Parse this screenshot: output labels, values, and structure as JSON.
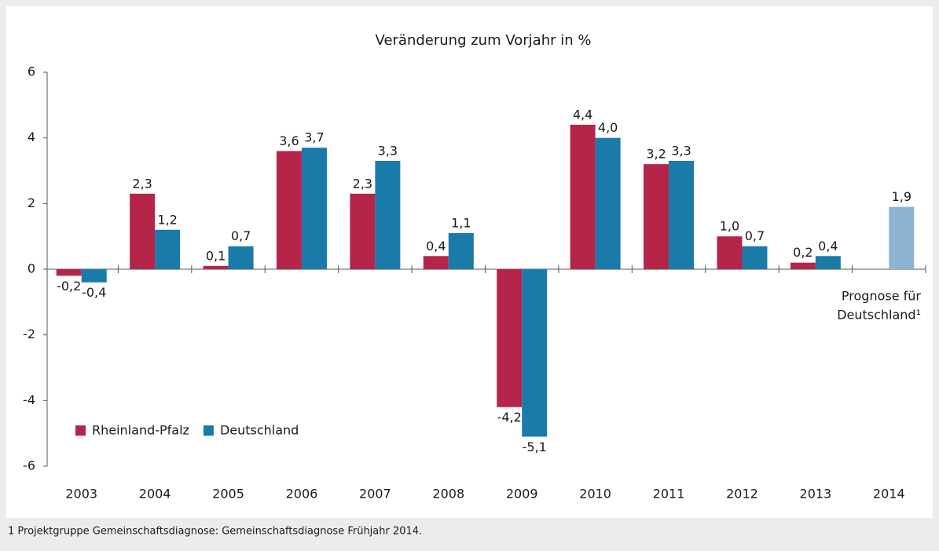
{
  "chart_data": {
    "type": "bar",
    "title": "Veränderung zum Vorjahr in %",
    "categories": [
      "2003",
      "2004",
      "2005",
      "2006",
      "2007",
      "2008",
      "2009",
      "2010",
      "2011",
      "2012",
      "2013",
      "2014"
    ],
    "series": [
      {
        "name": "Rheinland-Pfalz",
        "color": "#b5254a",
        "values": [
          -0.2,
          2.3,
          0.1,
          3.6,
          2.3,
          0.4,
          -4.2,
          4.4,
          3.2,
          1.0,
          0.2,
          null
        ],
        "value_labels": [
          "-0,2",
          "2,3",
          "0,1",
          "3,6",
          "2,3",
          "0,4",
          "-4,2",
          "4,4",
          "3,2",
          "1,0",
          "0,2",
          null
        ]
      },
      {
        "name": "Deutschland",
        "color": "#1a7aa8",
        "colors": [
          "#1a7aa8",
          "#1a7aa8",
          "#1a7aa8",
          "#1a7aa8",
          "#1a7aa8",
          "#1a7aa8",
          "#1a7aa8",
          "#1a7aa8",
          "#1a7aa8",
          "#1a7aa8",
          "#1a7aa8",
          "#8db3d3"
        ],
        "values": [
          -0.4,
          1.2,
          0.7,
          3.7,
          3.3,
          1.1,
          -5.1,
          4.0,
          3.3,
          0.7,
          0.4,
          1.9
        ],
        "value_labels": [
          "-0,4",
          "1,2",
          "0,7",
          "3,7",
          "3,3",
          "1,1",
          "-5,1",
          "4,0",
          "3,3",
          "0,7",
          "0,4",
          "1,9"
        ]
      }
    ],
    "ylim": [
      -6,
      6
    ],
    "yticks": [
      -6,
      -4,
      -2,
      0,
      2,
      4,
      6
    ],
    "annotation": [
      "Prognose für",
      "Deutschland¹"
    ],
    "legend": "lower left",
    "footnote": "1 Projektgruppe Gemeinschaftsdiagnose: Gemeinschaftsdiagnose Frühjahr 2014."
  }
}
